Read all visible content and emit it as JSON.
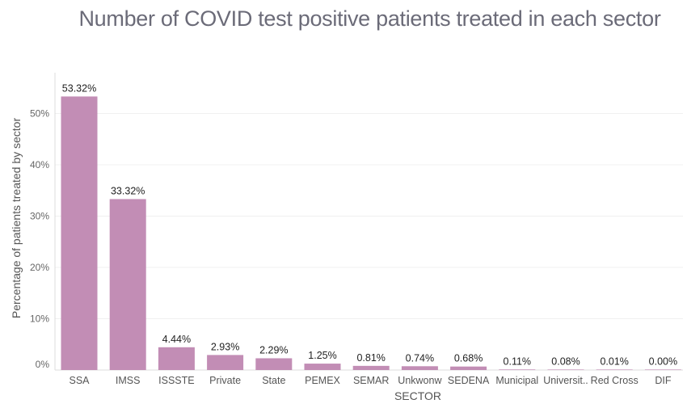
{
  "chart_data": {
    "type": "bar",
    "title": "Number of COVID test positive patients treated in each sector",
    "xlabel": "SECTOR",
    "ylabel": "Percentage of patients treated by sector",
    "ylim": [
      0,
      60
    ],
    "yticks": [
      "0%",
      "10%",
      "20%",
      "30%",
      "40%",
      "50%"
    ],
    "grid": true,
    "bar_color": "#c28db5",
    "categories": [
      "SSA",
      "IMSS",
      "ISSSTE",
      "Private",
      "State",
      "PEMEX",
      "SEMAR",
      "Unkwonw",
      "SEDENA",
      "Municipal",
      "Universit..",
      "Red Cross",
      "DIF"
    ],
    "values": [
      53.32,
      33.32,
      4.44,
      2.93,
      2.29,
      1.25,
      0.81,
      0.74,
      0.68,
      0.11,
      0.08,
      0.01,
      0.0
    ],
    "data_labels": [
      "53.32%",
      "33.32%",
      "4.44%",
      "2.93%",
      "2.29%",
      "1.25%",
      "0.81%",
      "0.74%",
      "0.68%",
      "0.11%",
      "0.08%",
      "0.01%",
      "0.00%"
    ]
  }
}
